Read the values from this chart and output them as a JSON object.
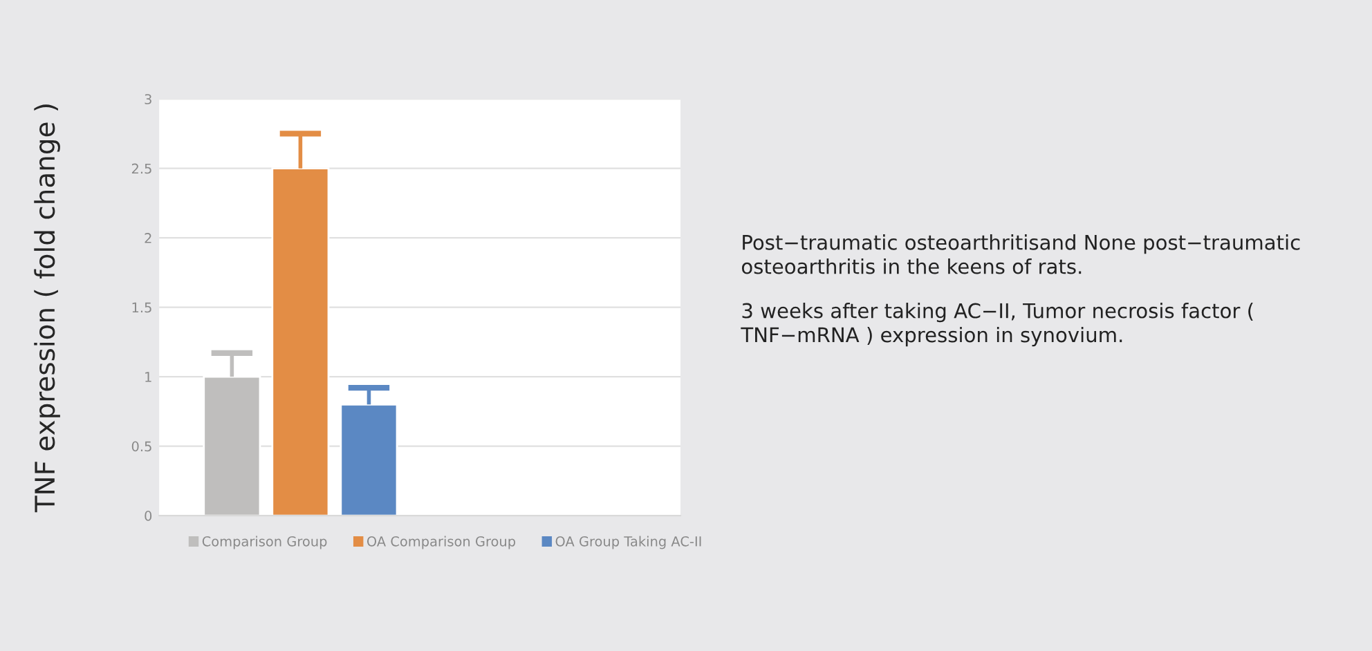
{
  "chart_data": {
    "type": "bar",
    "ylabel": "TNF expression ( fold change )",
    "categories": [
      null
    ],
    "series": [
      {
        "name": "Comparison Group",
        "color": "#bfbebd",
        "values": [
          1.0
        ],
        "errors": [
          [
            1.0,
            1.17
          ]
        ]
      },
      {
        "name": "OA Comparison Group",
        "color": "#e38d45",
        "values": [
          2.5
        ],
        "errors": [
          [
            2.5,
            2.75
          ]
        ]
      },
      {
        "name": "OA Group Taking AC-II",
        "color": "#5b88c3",
        "values": [
          0.8
        ],
        "errors": [
          [
            0.8,
            0.92
          ]
        ]
      }
    ],
    "ylim": [
      0,
      3
    ],
    "yticks": [
      0,
      0.5,
      1,
      1.5,
      2,
      2.5,
      3
    ],
    "grid": "y",
    "legend": "bottom",
    "annotations": [
      "Post−traumatic osteoarthritisand None post−traumatic osteoarthritis in the keens of rats.",
      "3 weeks after taking AC−II, Tumor necrosis factor ( TNF−mRNA ) expression in synovium."
    ]
  }
}
